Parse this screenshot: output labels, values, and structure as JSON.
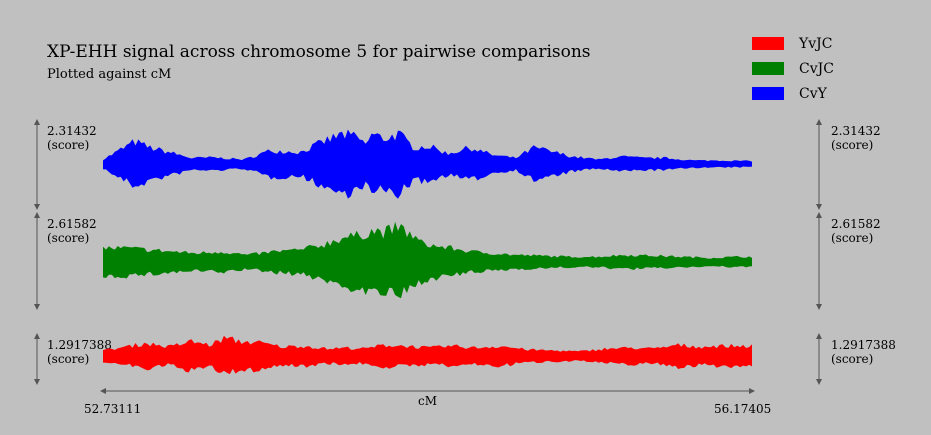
{
  "chart_data": {
    "type": "area",
    "title": "XP-EHH signal across chromosome 5 for pairwise comparisons",
    "subtitle": "Plotted against cM",
    "xlabel": "cM",
    "xlim": [
      52.73111,
      56.17405
    ],
    "x_min_label": "52.73111",
    "x_max_label": "56.17405",
    "legend_position": "top-right",
    "series": [
      {
        "name": "CvY",
        "color": "#0000ff",
        "scale_label": "2.31432",
        "unit_label": "(score)",
        "x": [
          52.73,
          52.9,
          52.98,
          53.08,
          53.2,
          53.32,
          53.48,
          53.62,
          53.78,
          53.92,
          54.0,
          54.08,
          54.12,
          54.16,
          54.22,
          54.3,
          54.38,
          54.46,
          54.56,
          54.68,
          54.8,
          54.92,
          55.02,
          55.12,
          55.22,
          55.36,
          55.48,
          55.6,
          55.72,
          55.86,
          56.0,
          56.17
        ],
        "values": [
          0.15,
          0.75,
          0.55,
          0.4,
          0.2,
          0.22,
          0.15,
          0.45,
          0.4,
          0.8,
          1.0,
          0.9,
          0.65,
          1.0,
          0.85,
          1.0,
          0.55,
          0.6,
          0.35,
          0.55,
          0.3,
          0.2,
          0.55,
          0.4,
          0.25,
          0.15,
          0.25,
          0.2,
          0.2,
          0.12,
          0.12,
          0.1
        ]
      },
      {
        "name": "CvJC",
        "color": "#008000",
        "scale_label": "2.61582",
        "unit_label": "(score)",
        "x": [
          52.73,
          52.85,
          52.98,
          53.1,
          53.22,
          53.36,
          53.5,
          53.64,
          53.78,
          53.9,
          54.0,
          54.08,
          54.16,
          54.22,
          54.3,
          54.36,
          54.42,
          54.5,
          54.58,
          54.68,
          54.8,
          54.92,
          55.05,
          55.2,
          55.35,
          55.5,
          55.65,
          55.8,
          55.95,
          56.1,
          56.17
        ],
        "values": [
          0.4,
          0.4,
          0.35,
          0.3,
          0.25,
          0.3,
          0.2,
          0.3,
          0.35,
          0.5,
          0.7,
          0.75,
          0.9,
          0.85,
          1.0,
          0.8,
          0.55,
          0.45,
          0.4,
          0.3,
          0.25,
          0.2,
          0.18,
          0.15,
          0.15,
          0.2,
          0.18,
          0.15,
          0.12,
          0.15,
          0.15
        ]
      },
      {
        "name": "YvJC",
        "color": "#ff0000",
        "scale_label": "1.2917388",
        "unit_label": "(score)",
        "x": [
          52.73,
          52.85,
          52.96,
          53.08,
          53.2,
          53.3,
          53.38,
          53.45,
          53.55,
          53.68,
          53.8,
          53.92,
          54.02,
          54.12,
          54.22,
          54.34,
          54.46,
          54.58,
          54.7,
          54.84,
          54.98,
          55.12,
          55.26,
          55.4,
          55.54,
          55.66,
          55.78,
          55.9,
          56.02,
          56.17
        ],
        "values": [
          0.3,
          0.5,
          0.7,
          0.5,
          0.8,
          0.6,
          1.0,
          0.8,
          0.75,
          0.5,
          0.55,
          0.4,
          0.45,
          0.4,
          0.6,
          0.55,
          0.45,
          0.55,
          0.45,
          0.55,
          0.35,
          0.3,
          0.25,
          0.4,
          0.45,
          0.4,
          0.6,
          0.5,
          0.55,
          0.55
        ]
      }
    ]
  }
}
